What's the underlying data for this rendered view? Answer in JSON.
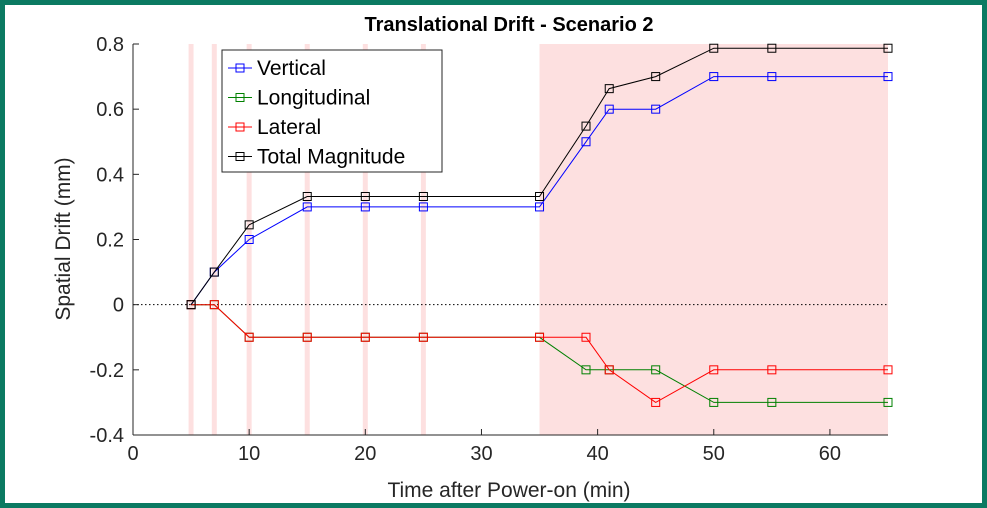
{
  "chart_data": {
    "type": "line",
    "title": "Translational Drift - Scenario 2",
    "xlabel": "Time after Power-on (min)",
    "ylabel": "Spatial Drift (mm)",
    "xlim": [
      0,
      65
    ],
    "ylim": [
      -0.4,
      0.8
    ],
    "xticks": [
      0,
      10,
      20,
      30,
      40,
      50,
      60
    ],
    "yticks": [
      -0.4,
      -0.2,
      0,
      0.2,
      0.4,
      0.6,
      0.8
    ],
    "xtick_labels": [
      "0",
      "10",
      "20",
      "30",
      "40",
      "50",
      "60"
    ],
    "ytick_labels": [
      "-0.4",
      "-0.2",
      "0",
      "0.2",
      "0.4",
      "0.6",
      "0.8"
    ],
    "grid": false,
    "zero_line": true,
    "legend_position": "top-left",
    "shaded_times": [
      5,
      7,
      10,
      15,
      20,
      25
    ],
    "shaded_region": [
      35,
      65
    ],
    "shade_color": "#fde0e0",
    "x": [
      5,
      7,
      10,
      15,
      20,
      25,
      35,
      39,
      41,
      45,
      50,
      55,
      65
    ],
    "series": [
      {
        "name": "Vertical",
        "color": "#0000ff",
        "values": [
          0,
          0.1,
          0.2,
          0.3,
          0.3,
          0.3,
          0.3,
          0.5,
          0.6,
          0.6,
          0.7,
          0.7,
          0.7
        ]
      },
      {
        "name": "Longitudinal",
        "color": "#008000",
        "values": [
          0,
          0,
          -0.1,
          -0.1,
          -0.1,
          -0.1,
          -0.1,
          -0.2,
          -0.2,
          -0.2,
          -0.3,
          -0.3,
          -0.3
        ]
      },
      {
        "name": "Lateral",
        "color": "#ff0000",
        "values": [
          0,
          0,
          -0.1,
          -0.1,
          -0.1,
          -0.1,
          -0.1,
          -0.1,
          -0.2,
          -0.3,
          -0.2,
          -0.2,
          -0.2
        ]
      },
      {
        "name": "Total Magnitude",
        "color": "#000000",
        "values": [
          0,
          0.1,
          0.245,
          0.332,
          0.332,
          0.332,
          0.332,
          0.548,
          0.663,
          0.7,
          0.787,
          0.787,
          0.787
        ]
      }
    ]
  }
}
